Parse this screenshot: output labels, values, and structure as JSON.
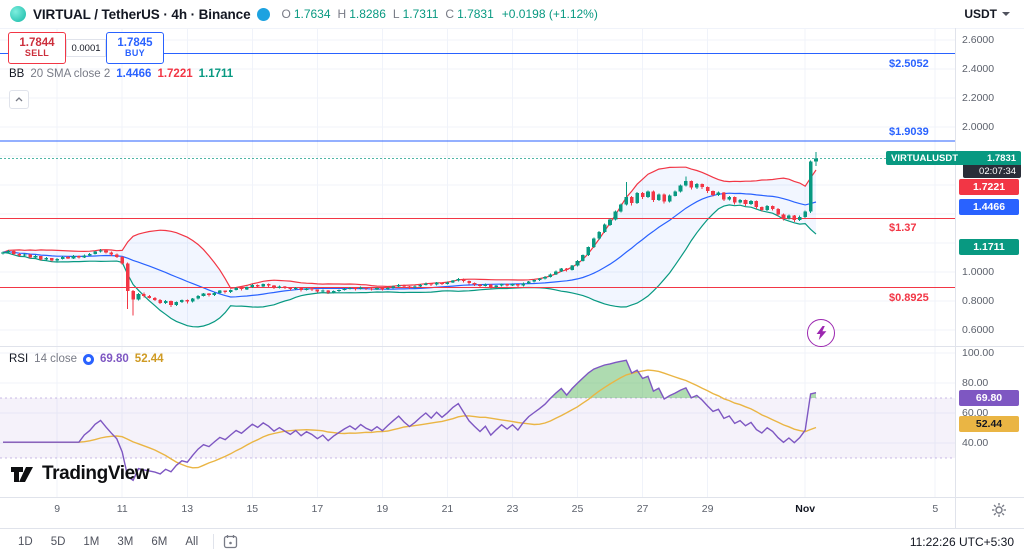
{
  "header": {
    "title": "VIRTUAL / TetherUS · 4h · Binance",
    "ohlc": [
      {
        "l": "O",
        "v": "1.7634"
      },
      {
        "l": "H",
        "v": "1.8286"
      },
      {
        "l": "L",
        "v": "1.7311"
      },
      {
        "l": "C",
        "v": "1.7831"
      }
    ],
    "change": "+0.0198 (+1.12%)",
    "currency": "USDT"
  },
  "trade": {
    "sell_price": "1.7844",
    "sell_label": "SELL",
    "spread": "0.0001",
    "buy_price": "1.7845",
    "buy_label": "BUY"
  },
  "indicators": {
    "bb": {
      "name": "BB",
      "params": "20 SMA close 2",
      "basis": "1.4466",
      "upper": "1.7221",
      "lower": "1.1711"
    },
    "rsi": {
      "name": "RSI",
      "params": "14 close",
      "value": "69.80",
      "ma": "52.44"
    }
  },
  "price_axis": {
    "ticks": [
      "2.6000",
      "2.4000",
      "2.2000",
      "2.0000",
      "1.0000",
      "0.8000",
      "0.6000"
    ]
  },
  "rsi_axis": {
    "ticks": [
      "100.00",
      "80.00",
      "60.00",
      "40.00"
    ]
  },
  "axis_badges": {
    "symbol": {
      "label": "VIRTUALUSDT",
      "price": "1.7831",
      "countdown": "02:07:34",
      "value": 1.7831,
      "bg": "#089981"
    },
    "list": [
      {
        "text": "1.7221",
        "value": 1.7221,
        "pane": "price",
        "bg": "#f23645",
        "fg": "#ffffff"
      },
      {
        "text": "1.4466",
        "value": 1.4466,
        "pane": "price",
        "bg": "#2962ff",
        "fg": "#ffffff"
      },
      {
        "text": "1.1711",
        "value": 1.1711,
        "pane": "price",
        "bg": "#089981",
        "fg": "#ffffff"
      },
      {
        "text": "69.80",
        "value": 69.8,
        "pane": "rsi",
        "bg": "#7e57c2",
        "fg": "#ffffff"
      },
      {
        "text": "52.44",
        "value": 52.44,
        "pane": "rsi",
        "bg": "#eab544",
        "fg": "#131722"
      }
    ]
  },
  "alert_lines": [
    {
      "label": "$2.5052",
      "price": 2.5052,
      "color": "#2962ff",
      "label_pos": "below"
    },
    {
      "label": "$1.9039",
      "price": 1.9039,
      "color": "#2962ff",
      "label_pos": "above"
    },
    {
      "label": "$1.37",
      "price": 1.37,
      "color": "#f23645",
      "label_pos": "below"
    },
    {
      "label": "$0.8925",
      "price": 0.8925,
      "color": "#f23645",
      "label_pos": "below"
    }
  ],
  "time_axis": {
    "ticks": [
      {
        "t": "9",
        "i": 10
      },
      {
        "t": "11",
        "i": 22
      },
      {
        "t": "13",
        "i": 34
      },
      {
        "t": "15",
        "i": 46
      },
      {
        "t": "17",
        "i": 58
      },
      {
        "t": "19",
        "i": 70
      },
      {
        "t": "21",
        "i": 82
      },
      {
        "t": "23",
        "i": 94
      },
      {
        "t": "25",
        "i": 106
      },
      {
        "t": "27",
        "i": 118
      },
      {
        "t": "29",
        "i": 130
      },
      {
        "t": "Nov",
        "i": 148,
        "strong": true
      },
      {
        "t": "5",
        "i": 172
      }
    ]
  },
  "toolbar": {
    "ranges": [
      "1D",
      "5D",
      "1M",
      "3M",
      "6M",
      "All"
    ],
    "clock": "11:22:26 UTC+5:30"
  },
  "watermark": {
    "text": "TradingView"
  },
  "chart_data": {
    "type": "candlestick",
    "symbol": "VIRTUALUSDT",
    "exchange": "Binance",
    "interval": "4h",
    "last_price": 1.7831,
    "up_color": "#089981",
    "down_color": "#f23645",
    "indicators": {
      "bollinger": {
        "length": 20,
        "stdev": 2,
        "basis_color": "#2962ff",
        "upper_color": "#f23645",
        "lower_color": "#089981",
        "fill_color": "rgba(41,98,255,0.06)",
        "last_values": {
          "basis": 1.4466,
          "upper": 1.7221,
          "lower": 1.1711
        }
      },
      "rsi": {
        "length": 14,
        "source": "close",
        "line_color": "#7e57c2",
        "ma_color": "#eab544",
        "overbought": 70,
        "oversold": 30,
        "band_fill": "rgba(126,87,194,0.08)",
        "overbought_fill": "rgba(76,175,80,0.45)",
        "last_values": {
          "rsi": 69.8,
          "ma": 52.44
        }
      }
    },
    "candles": [
      [
        1.128,
        1.142,
        1.122,
        1.135
      ],
      [
        1.135,
        1.152,
        1.13,
        1.145
      ],
      [
        1.145,
        1.148,
        1.118,
        1.125
      ],
      [
        1.125,
        1.132,
        1.108,
        1.115
      ],
      [
        1.115,
        1.128,
        1.11,
        1.12
      ],
      [
        1.12,
        1.124,
        1.092,
        1.1
      ],
      [
        1.1,
        1.118,
        1.095,
        1.11
      ],
      [
        1.11,
        1.112,
        1.078,
        1.085
      ],
      [
        1.085,
        1.102,
        1.08,
        1.095
      ],
      [
        1.095,
        1.098,
        1.072,
        1.08
      ],
      [
        1.08,
        1.096,
        1.074,
        1.09
      ],
      [
        1.09,
        1.112,
        1.085,
        1.105
      ],
      [
        1.105,
        1.11,
        1.088,
        1.095
      ],
      [
        1.095,
        1.116,
        1.09,
        1.11
      ],
      [
        1.11,
        1.114,
        1.092,
        1.1
      ],
      [
        1.1,
        1.122,
        1.096,
        1.115
      ],
      [
        1.115,
        1.132,
        1.11,
        1.125
      ],
      [
        1.125,
        1.146,
        1.12,
        1.14
      ],
      [
        1.14,
        1.158,
        1.134,
        1.15
      ],
      [
        1.15,
        1.154,
        1.128,
        1.135
      ],
      [
        1.135,
        1.14,
        1.112,
        1.12
      ],
      [
        1.12,
        1.126,
        1.098,
        1.105
      ],
      [
        1.105,
        1.11,
        1.052,
        1.06
      ],
      [
        1.06,
        1.065,
        0.745,
        0.87
      ],
      [
        0.87,
        0.876,
        0.7,
        0.81
      ],
      [
        0.81,
        0.856,
        0.805,
        0.85
      ],
      [
        0.85,
        0.858,
        0.825,
        0.835
      ],
      [
        0.835,
        0.842,
        0.816,
        0.822
      ],
      [
        0.822,
        0.828,
        0.8,
        0.808
      ],
      [
        0.808,
        0.814,
        0.778,
        0.786
      ],
      [
        0.786,
        0.806,
        0.781,
        0.8
      ],
      [
        0.8,
        0.803,
        0.76,
        0.772
      ],
      [
        0.772,
        0.797,
        0.767,
        0.792
      ],
      [
        0.792,
        0.812,
        0.787,
        0.806
      ],
      [
        0.806,
        0.81,
        0.784,
        0.795
      ],
      [
        0.795,
        0.822,
        0.79,
        0.816
      ],
      [
        0.816,
        0.842,
        0.811,
        0.836
      ],
      [
        0.836,
        0.856,
        0.831,
        0.851
      ],
      [
        0.851,
        0.854,
        0.832,
        0.841
      ],
      [
        0.841,
        0.862,
        0.836,
        0.856
      ],
      [
        0.856,
        0.876,
        0.851,
        0.871
      ],
      [
        0.871,
        0.874,
        0.852,
        0.861
      ],
      [
        0.861,
        0.881,
        0.856,
        0.876
      ],
      [
        0.876,
        0.896,
        0.871,
        0.891
      ],
      [
        0.891,
        0.894,
        0.872,
        0.881
      ],
      [
        0.881,
        0.901,
        0.876,
        0.896
      ],
      [
        0.896,
        0.916,
        0.891,
        0.911
      ],
      [
        0.911,
        0.914,
        0.892,
        0.901
      ],
      [
        0.901,
        0.921,
        0.896,
        0.916
      ],
      [
        0.916,
        0.919,
        0.896,
        0.906
      ],
      [
        0.906,
        0.909,
        0.882,
        0.891
      ],
      [
        0.891,
        0.906,
        0.886,
        0.901
      ],
      [
        0.901,
        0.904,
        0.882,
        0.891
      ],
      [
        0.891,
        0.894,
        0.872,
        0.881
      ],
      [
        0.881,
        0.896,
        0.876,
        0.891
      ],
      [
        0.891,
        0.893,
        0.867,
        0.876
      ],
      [
        0.876,
        0.891,
        0.871,
        0.886
      ],
      [
        0.886,
        0.889,
        0.869,
        0.878
      ],
      [
        0.878,
        0.881,
        0.857,
        0.866
      ],
      [
        0.866,
        0.879,
        0.861,
        0.874
      ],
      [
        0.874,
        0.876,
        0.849,
        0.858
      ],
      [
        0.858,
        0.873,
        0.853,
        0.868
      ],
      [
        0.868,
        0.881,
        0.863,
        0.876
      ],
      [
        0.876,
        0.889,
        0.871,
        0.884
      ],
      [
        0.884,
        0.896,
        0.879,
        0.891
      ],
      [
        0.891,
        0.893,
        0.874,
        0.883
      ],
      [
        0.883,
        0.899,
        0.878,
        0.894
      ],
      [
        0.894,
        0.896,
        0.877,
        0.886
      ],
      [
        0.886,
        0.889,
        0.872,
        0.881
      ],
      [
        0.881,
        0.894,
        0.876,
        0.889
      ],
      [
        0.889,
        0.891,
        0.872,
        0.881
      ],
      [
        0.881,
        0.896,
        0.876,
        0.891
      ],
      [
        0.891,
        0.906,
        0.886,
        0.901
      ],
      [
        0.901,
        0.916,
        0.896,
        0.911
      ],
      [
        0.911,
        0.914,
        0.892,
        0.901
      ],
      [
        0.901,
        0.904,
        0.884,
        0.893
      ],
      [
        0.893,
        0.906,
        0.888,
        0.901
      ],
      [
        0.901,
        0.916,
        0.896,
        0.911
      ],
      [
        0.911,
        0.926,
        0.906,
        0.921
      ],
      [
        0.921,
        0.924,
        0.904,
        0.913
      ],
      [
        0.913,
        0.931,
        0.908,
        0.926
      ],
      [
        0.926,
        0.929,
        0.909,
        0.918
      ],
      [
        0.918,
        0.933,
        0.913,
        0.928
      ],
      [
        0.928,
        0.946,
        0.923,
        0.941
      ],
      [
        0.941,
        0.958,
        0.936,
        0.951
      ],
      [
        0.951,
        0.954,
        0.929,
        0.938
      ],
      [
        0.938,
        0.941,
        0.915,
        0.924
      ],
      [
        0.924,
        0.927,
        0.905,
        0.914
      ],
      [
        0.914,
        0.917,
        0.895,
        0.904
      ],
      [
        0.904,
        0.919,
        0.899,
        0.914
      ],
      [
        0.914,
        0.916,
        0.887,
        0.896
      ],
      [
        0.896,
        0.911,
        0.891,
        0.906
      ],
      [
        0.906,
        0.921,
        0.901,
        0.916
      ],
      [
        0.916,
        0.919,
        0.899,
        0.908
      ],
      [
        0.908,
        0.921,
        0.903,
        0.916
      ],
      [
        0.916,
        0.918,
        0.897,
        0.906
      ],
      [
        0.906,
        0.926,
        0.901,
        0.921
      ],
      [
        0.921,
        0.939,
        0.916,
        0.934
      ],
      [
        0.934,
        0.949,
        0.929,
        0.944
      ],
      [
        0.944,
        0.959,
        0.939,
        0.954
      ],
      [
        0.954,
        0.971,
        0.949,
        0.966
      ],
      [
        0.966,
        0.989,
        0.961,
        0.984
      ],
      [
        0.984,
        1.009,
        0.979,
        1.004
      ],
      [
        1.004,
        1.029,
        0.999,
        1.024
      ],
      [
        1.024,
        1.028,
        1.004,
        1.014
      ],
      [
        1.014,
        1.049,
        1.009,
        1.044
      ],
      [
        1.044,
        1.082,
        1.039,
        1.076
      ],
      [
        1.076,
        1.122,
        1.071,
        1.116
      ],
      [
        1.116,
        1.177,
        1.111,
        1.171
      ],
      [
        1.171,
        1.237,
        1.166,
        1.231
      ],
      [
        1.231,
        1.283,
        1.221,
        1.276
      ],
      [
        1.276,
        1.333,
        1.269,
        1.326
      ],
      [
        1.326,
        1.368,
        1.318,
        1.361
      ],
      [
        1.361,
        1.423,
        1.354,
        1.416
      ],
      [
        1.416,
        1.473,
        1.409,
        1.466
      ],
      [
        1.466,
        1.62,
        1.459,
        1.516
      ],
      [
        1.516,
        1.524,
        1.458,
        1.476
      ],
      [
        1.476,
        1.553,
        1.469,
        1.546
      ],
      [
        1.546,
        1.552,
        1.504,
        1.516
      ],
      [
        1.516,
        1.563,
        1.509,
        1.556
      ],
      [
        1.556,
        1.561,
        1.484,
        1.496
      ],
      [
        1.496,
        1.543,
        1.489,
        1.536
      ],
      [
        1.536,
        1.541,
        1.474,
        1.486
      ],
      [
        1.486,
        1.533,
        1.479,
        1.526
      ],
      [
        1.526,
        1.563,
        1.519,
        1.556
      ],
      [
        1.556,
        1.603,
        1.549,
        1.596
      ],
      [
        1.596,
        1.66,
        1.589,
        1.626
      ],
      [
        1.626,
        1.631,
        1.569,
        1.581
      ],
      [
        1.581,
        1.615,
        1.574,
        1.608
      ],
      [
        1.608,
        1.612,
        1.574,
        1.586
      ],
      [
        1.586,
        1.59,
        1.546,
        1.558
      ],
      [
        1.558,
        1.562,
        1.519,
        1.531
      ],
      [
        1.531,
        1.555,
        1.524,
        1.548
      ],
      [
        1.548,
        1.552,
        1.489,
        1.501
      ],
      [
        1.501,
        1.525,
        1.494,
        1.518
      ],
      [
        1.518,
        1.522,
        1.466,
        1.478
      ],
      [
        1.478,
        1.503,
        1.471,
        1.496
      ],
      [
        1.496,
        1.5,
        1.456,
        1.468
      ],
      [
        1.468,
        1.495,
        1.461,
        1.488
      ],
      [
        1.488,
        1.492,
        1.436,
        1.448
      ],
      [
        1.448,
        1.452,
        1.416,
        1.428
      ],
      [
        1.428,
        1.463,
        1.421,
        1.456
      ],
      [
        1.456,
        1.46,
        1.424,
        1.436
      ],
      [
        1.436,
        1.44,
        1.386,
        1.398
      ],
      [
        1.398,
        1.402,
        1.354,
        1.368
      ],
      [
        1.368,
        1.395,
        1.361,
        1.388
      ],
      [
        1.388,
        1.392,
        1.344,
        1.358
      ],
      [
        1.358,
        1.388,
        1.351,
        1.381
      ],
      [
        1.381,
        1.425,
        1.374,
        1.418
      ],
      [
        1.418,
        1.768,
        1.408,
        1.7634
      ],
      [
        1.7634,
        1.8286,
        1.7311,
        1.7831
      ]
    ]
  }
}
